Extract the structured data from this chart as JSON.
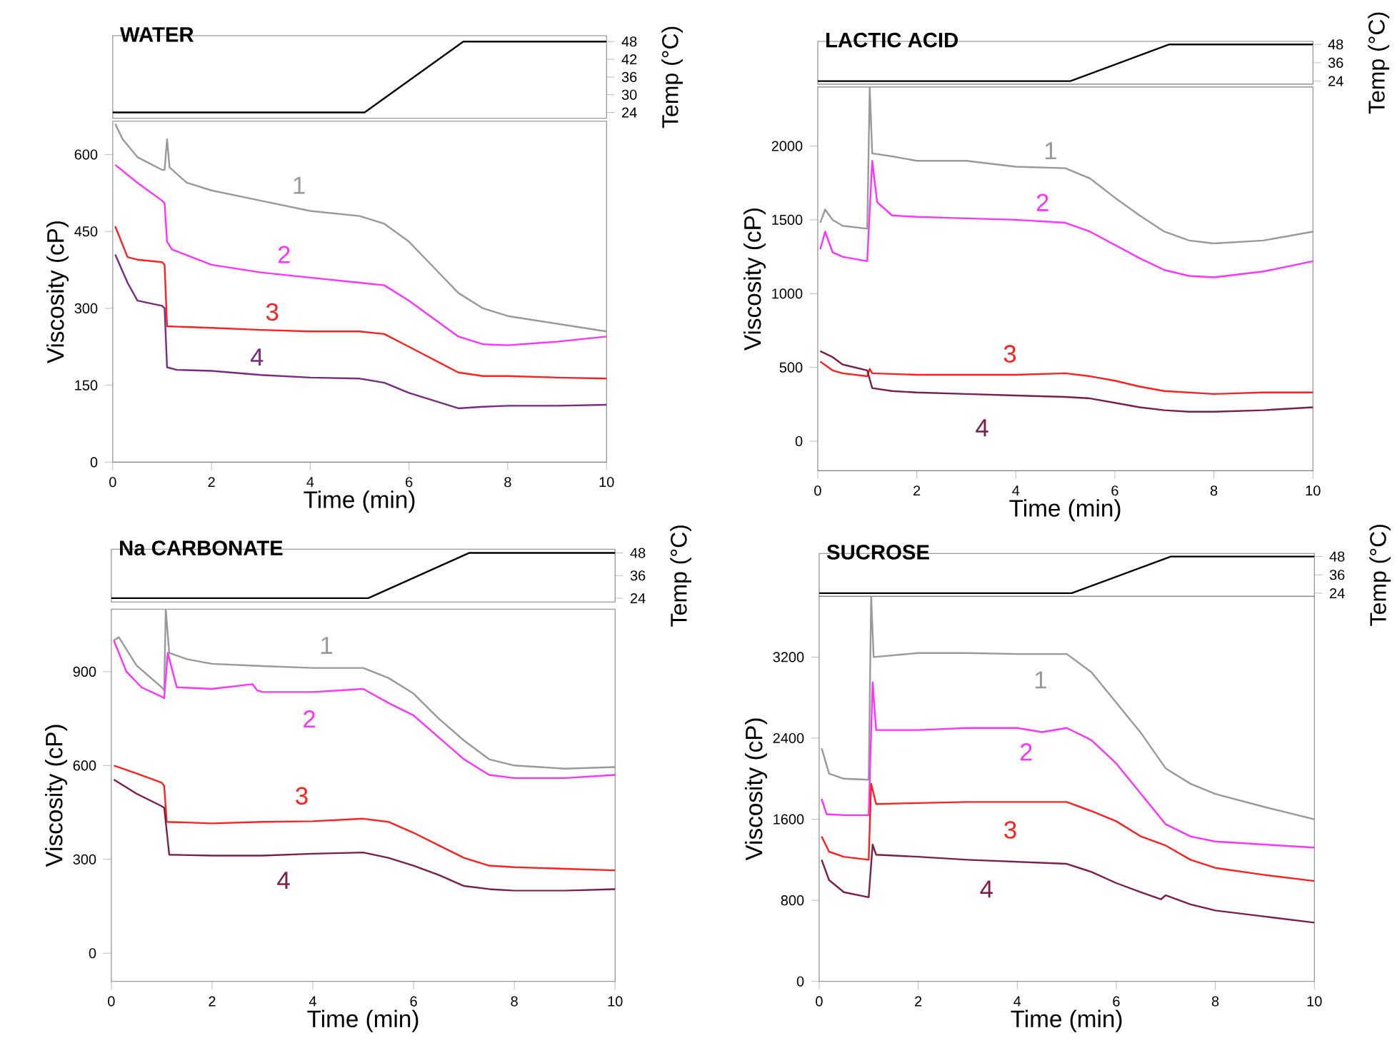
{
  "chart_data": [
    {
      "type": "line",
      "title": "WATER",
      "y2label": "Temp (°C)",
      "xlim": [
        0,
        10
      ],
      "y2lim": [
        22,
        50
      ],
      "y2ticks": [
        24,
        30,
        36,
        42,
        48
      ],
      "tick_labels": "y",
      "series": [
        {
          "color": "#000000",
          "axis": "y2",
          "x": [
            0,
            5.1,
            7.1,
            10
          ],
          "values": [
            24,
            24,
            48,
            48
          ]
        }
      ]
    },
    {
      "type": "line",
      "xlabel": "Time (min)",
      "ylabel": "Viscosity (cP)",
      "xlim": [
        0,
        10
      ],
      "ylim": [
        0,
        665
      ],
      "xticks": [
        0,
        2,
        4,
        6,
        8,
        10
      ],
      "yticks": [
        0,
        150,
        300,
        450,
        600
      ],
      "series": [
        {
          "name": "1",
          "color": "#999999",
          "x": [
            0.05,
            0.2,
            0.5,
            1.0,
            1.05,
            1.1,
            1.15,
            1.5,
            2,
            3,
            4,
            5,
            5.5,
            6,
            6.5,
            7,
            7.5,
            8,
            9,
            10
          ],
          "values": [
            660,
            630,
            595,
            570,
            570,
            630,
            575,
            545,
            530,
            510,
            490,
            480,
            465,
            430,
            380,
            330,
            300,
            285,
            270,
            255
          ]
        },
        {
          "name": "2",
          "color": "#ff33ff",
          "x": [
            0.05,
            0.5,
            1.0,
            1.05,
            1.1,
            1.2,
            2,
            3,
            4,
            5,
            5.5,
            6,
            6.5,
            7,
            7.5,
            8,
            9,
            10
          ],
          "values": [
            580,
            545,
            510,
            505,
            430,
            415,
            385,
            370,
            360,
            350,
            345,
            315,
            280,
            245,
            230,
            228,
            235,
            245
          ]
        },
        {
          "name": "3",
          "color": "#ff2020",
          "x": [
            0.05,
            0.3,
            0.5,
            1.0,
            1.05,
            1.1,
            2,
            3,
            4,
            5,
            5.5,
            6,
            6.5,
            7,
            7.5,
            8,
            9,
            10
          ],
          "values": [
            460,
            400,
            395,
            390,
            385,
            265,
            262,
            258,
            255,
            255,
            250,
            225,
            200,
            175,
            168,
            168,
            165,
            163
          ]
        },
        {
          "name": "4",
          "color": "#7a2a80",
          "x": [
            0.05,
            0.3,
            0.5,
            1.0,
            1.05,
            1.1,
            1.3,
            2,
            3,
            4,
            5,
            5.5,
            6,
            6.5,
            7,
            7.5,
            8,
            9,
            10
          ],
          "values": [
            405,
            350,
            315,
            305,
            300,
            185,
            180,
            178,
            170,
            165,
            163,
            155,
            135,
            120,
            105,
            108,
            110,
            110,
            112
          ]
        }
      ]
    },
    {
      "type": "line",
      "title": "LACTIC ACID",
      "y2label": "Temp (°C)",
      "xlim": [
        0,
        10
      ],
      "y2lim": [
        22,
        50
      ],
      "y2ticks": [
        24,
        36,
        48
      ],
      "tick_labels": "y",
      "series": [
        {
          "color": "#000000",
          "axis": "y2",
          "x": [
            0,
            5.1,
            7.1,
            10
          ],
          "values": [
            24,
            24,
            48,
            48
          ]
        }
      ]
    },
    {
      "type": "line",
      "xlabel": "Time (min)",
      "ylabel": "Viscosity (cP)",
      "xlim": [
        0,
        10
      ],
      "ylim": [
        -200,
        2400
      ],
      "xticks": [
        0,
        2,
        4,
        6,
        8,
        10
      ],
      "yticks": [
        0,
        500,
        1000,
        1500,
        2000
      ],
      "series": [
        {
          "name": "1",
          "color": "#999999",
          "x": [
            0.05,
            0.15,
            0.3,
            0.5,
            1.0,
            1.05,
            1.1,
            1.5,
            2,
            3,
            4,
            5,
            5.5,
            6,
            6.5,
            7,
            7.5,
            8,
            9,
            10
          ],
          "values": [
            1480,
            1570,
            1500,
            1460,
            1440,
            2400,
            1950,
            1930,
            1900,
            1900,
            1860,
            1850,
            1780,
            1650,
            1530,
            1420,
            1360,
            1340,
            1360,
            1420
          ]
        },
        {
          "name": "2",
          "color": "#ff33ff",
          "x": [
            0.05,
            0.15,
            0.3,
            0.5,
            1.0,
            1.1,
            1.2,
            1.5,
            2,
            3,
            4,
            5,
            5.5,
            6,
            6.5,
            7,
            7.5,
            8,
            9,
            10
          ],
          "values": [
            1300,
            1420,
            1280,
            1250,
            1220,
            1900,
            1620,
            1530,
            1520,
            1510,
            1500,
            1480,
            1420,
            1330,
            1240,
            1160,
            1120,
            1110,
            1150,
            1220
          ]
        },
        {
          "name": "3",
          "color": "#ff2020",
          "x": [
            0.05,
            0.3,
            0.5,
            1.0,
            1.05,
            1.1,
            2,
            3,
            4,
            5,
            5.5,
            6,
            6.5,
            7,
            7.5,
            8,
            9,
            10
          ],
          "values": [
            540,
            480,
            460,
            440,
            490,
            460,
            450,
            450,
            450,
            460,
            440,
            410,
            370,
            340,
            330,
            320,
            330,
            330
          ]
        },
        {
          "name": "4",
          "color": "#7a1f4a",
          "x": [
            0.05,
            0.3,
            0.5,
            1.0,
            1.1,
            1.5,
            2,
            3,
            4,
            5,
            5.5,
            6,
            6.5,
            7,
            7.5,
            8,
            9,
            10
          ],
          "values": [
            610,
            570,
            520,
            480,
            360,
            340,
            330,
            320,
            310,
            300,
            290,
            260,
            230,
            210,
            200,
            200,
            210,
            230
          ]
        }
      ]
    },
    {
      "type": "line",
      "title": "Na CARBONATE",
      "y2label": "Temp (°C)",
      "xlim": [
        0,
        10
      ],
      "y2lim": [
        22,
        50
      ],
      "y2ticks": [
        24,
        36,
        48
      ],
      "tick_labels": "y",
      "series": [
        {
          "color": "#000000",
          "axis": "y2",
          "x": [
            0,
            5.1,
            7.1,
            10
          ],
          "values": [
            24,
            24,
            48,
            48
          ]
        }
      ]
    },
    {
      "type": "line",
      "xlabel": "Time (min)",
      "ylabel": "Viscosity (cP)",
      "xlim": [
        0,
        10
      ],
      "ylim": [
        -90,
        1100
      ],
      "xticks": [
        0,
        2,
        4,
        6,
        8,
        10
      ],
      "yticks": [
        0,
        300,
        600,
        900
      ],
      "series": [
        {
          "name": "1",
          "color": "#999999",
          "x": [
            0.05,
            0.15,
            0.5,
            1.0,
            1.05,
            1.08,
            1.15,
            1.5,
            2,
            3,
            4,
            5,
            5.5,
            6,
            6.5,
            7,
            7.5,
            8,
            9,
            10
          ],
          "values": [
            1000,
            1010,
            920,
            850,
            840,
            1100,
            960,
            940,
            925,
            918,
            912,
            912,
            880,
            830,
            750,
            680,
            620,
            600,
            590,
            595
          ]
        },
        {
          "name": "2",
          "color": "#ff33ff",
          "x": [
            0.05,
            0.3,
            0.6,
            1.0,
            1.05,
            1.12,
            1.3,
            2,
            2.8,
            2.9,
            3,
            4,
            5,
            5.5,
            6,
            6.5,
            7,
            7.5,
            8,
            9,
            10
          ],
          "values": [
            1000,
            900,
            850,
            820,
            815,
            960,
            850,
            845,
            860,
            840,
            835,
            835,
            845,
            800,
            760,
            690,
            620,
            570,
            560,
            560,
            570
          ]
        },
        {
          "name": "3",
          "color": "#ff2020",
          "x": [
            0.05,
            0.5,
            1.0,
            1.05,
            1.1,
            2,
            3,
            4,
            5,
            5.5,
            6,
            6.5,
            7,
            7.5,
            8,
            9,
            10
          ],
          "values": [
            600,
            575,
            545,
            535,
            420,
            415,
            420,
            422,
            430,
            420,
            385,
            345,
            305,
            280,
            275,
            270,
            265
          ]
        },
        {
          "name": "4",
          "color": "#7a1f4a",
          "x": [
            0.05,
            0.5,
            1.0,
            1.05,
            1.15,
            2,
            3,
            4,
            5,
            5.5,
            6,
            6.5,
            7,
            7.5,
            8,
            9,
            10
          ],
          "values": [
            555,
            510,
            470,
            465,
            315,
            312,
            312,
            318,
            322,
            305,
            280,
            250,
            215,
            205,
            200,
            200,
            205
          ]
        }
      ]
    },
    {
      "type": "line",
      "title": "SUCROSE",
      "y2label": "Temp (°C)",
      "xlim": [
        0,
        10
      ],
      "y2lim": [
        22,
        50
      ],
      "y2ticks": [
        24,
        36,
        48
      ],
      "tick_labels": "y",
      "series": [
        {
          "color": "#000000",
          "axis": "y2",
          "x": [
            0,
            5.1,
            7.1,
            10
          ],
          "values": [
            24,
            24,
            48,
            48
          ]
        }
      ]
    },
    {
      "type": "line",
      "xlabel": "Time (min)",
      "ylabel": "Viscosity (cP)",
      "xlim": [
        0,
        10
      ],
      "ylim": [
        0,
        3800
      ],
      "xticks": [
        0,
        2,
        4,
        6,
        8,
        10
      ],
      "yticks": [
        0,
        800,
        1600,
        2400,
        3200
      ],
      "series": [
        {
          "name": "1",
          "color": "#999999",
          "x": [
            0.05,
            0.2,
            0.5,
            1.0,
            1.05,
            1.1,
            2,
            3,
            4,
            5,
            5.5,
            6,
            6.5,
            7,
            7.5,
            8,
            9,
            10
          ],
          "values": [
            2300,
            2050,
            2000,
            1990,
            3800,
            3200,
            3240,
            3240,
            3230,
            3230,
            3050,
            2750,
            2450,
            2100,
            1950,
            1850,
            1720,
            1600
          ]
        },
        {
          "name": "2",
          "color": "#ff33ff",
          "x": [
            0.05,
            0.15,
            0.5,
            1.0,
            1.08,
            1.15,
            2,
            3,
            4,
            4.5,
            5,
            5.5,
            6,
            6.5,
            7,
            7.5,
            8,
            9,
            10
          ],
          "values": [
            1800,
            1650,
            1640,
            1640,
            2950,
            2480,
            2480,
            2500,
            2500,
            2460,
            2500,
            2380,
            2150,
            1850,
            1550,
            1430,
            1380,
            1350,
            1320
          ]
        },
        {
          "name": "3",
          "color": "#ff2020",
          "x": [
            0.05,
            0.2,
            0.5,
            1.0,
            1.05,
            1.15,
            2,
            3,
            4,
            5,
            5.5,
            6,
            6.5,
            7,
            7.5,
            8,
            9,
            10
          ],
          "values": [
            1430,
            1280,
            1230,
            1200,
            1950,
            1750,
            1760,
            1770,
            1770,
            1770,
            1680,
            1580,
            1430,
            1340,
            1200,
            1120,
            1050,
            990
          ]
        },
        {
          "name": "4",
          "color": "#7a1f4a",
          "x": [
            0.05,
            0.2,
            0.5,
            1.0,
            1.08,
            1.15,
            2,
            3,
            4,
            5,
            5.5,
            6,
            6.5,
            6.9,
            7.0,
            7.5,
            8,
            9,
            10
          ],
          "values": [
            1200,
            1000,
            880,
            830,
            1350,
            1250,
            1230,
            1200,
            1180,
            1160,
            1080,
            970,
            880,
            810,
            850,
            760,
            700,
            640,
            580
          ]
        }
      ]
    }
  ]
}
